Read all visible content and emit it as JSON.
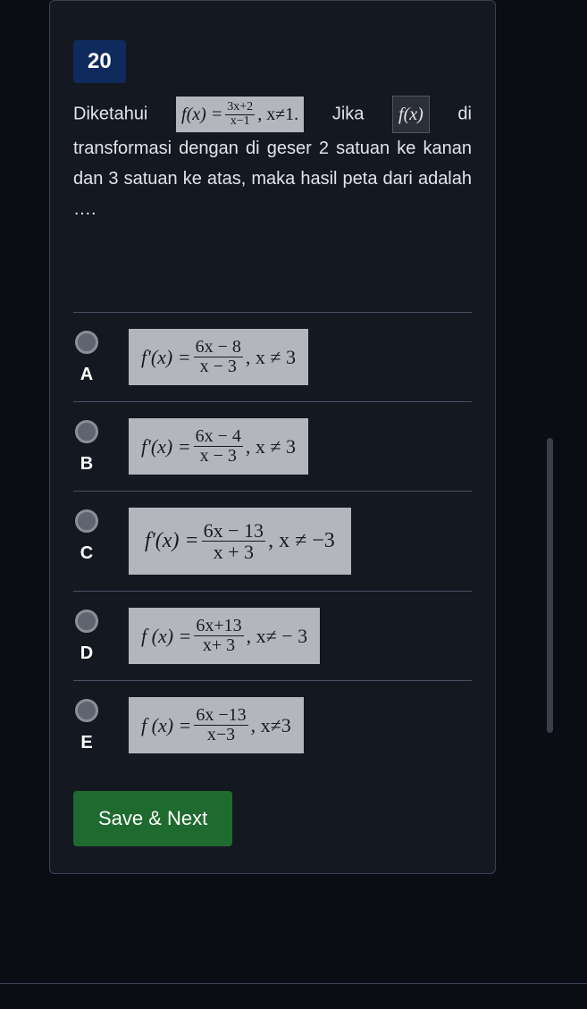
{
  "question": {
    "number": "20",
    "text_pre": "Diketahui",
    "formula1_lhs": "f(x) = ",
    "formula1_num": "3x+2",
    "formula1_den": "x−1",
    "formula1_cond": ",  x≠1.",
    "text_mid": " Jika ",
    "formula2": "f(x)",
    "text_post": " di transformasi dengan di geser 2 satuan ke kanan dan 3 satuan ke atas, maka hasil peta dari  adalah …."
  },
  "options": [
    {
      "letter": "A",
      "lhs": "f'(x) = ",
      "num": "6x  −  8",
      "den": "x − 3",
      "cond": ", x ≠ 3"
    },
    {
      "letter": "B",
      "lhs": "f'(x) = ",
      "num": "6x  −  4",
      "den": "x − 3",
      "cond": ", x ≠ 3"
    },
    {
      "letter": "C",
      "lhs": "f'(x) = ",
      "num": "6x  −  13",
      "den": "x  +  3",
      "cond": ", x ≠ −3",
      "tall": true
    },
    {
      "letter": "D",
      "lhs": "f (x) = ",
      "num": "6x+13",
      "den": "x+ 3",
      "cond": ", x≠  − 3"
    },
    {
      "letter": "E",
      "lhs": "f (x) = ",
      "num": "6x −13",
      "den": "x−3",
      "cond": ", x≠3"
    }
  ],
  "button": {
    "save": "Save & Next"
  },
  "colors": {
    "bg": "#0a0d14",
    "card": "#141821",
    "border": "#3a4053",
    "qnum_bg": "#0f2a5c",
    "text": "#e2e4ea",
    "math_bg": "#b3b7bd",
    "save_bg": "#1f6b2f"
  }
}
